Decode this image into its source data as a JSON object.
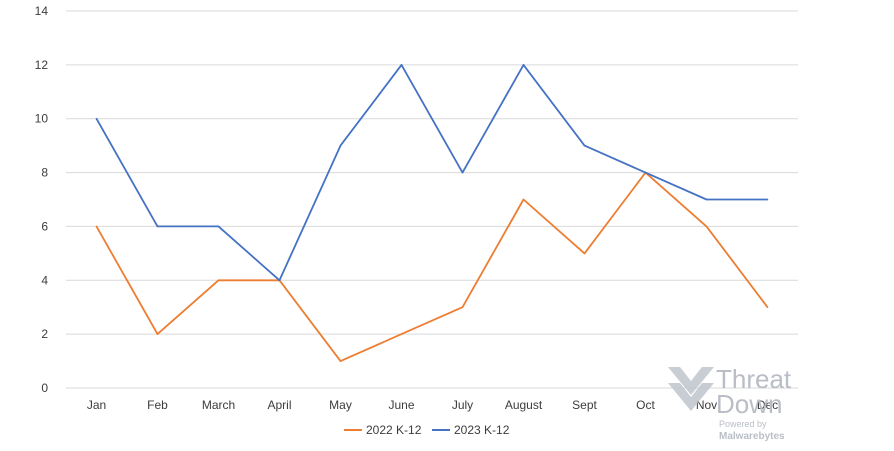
{
  "chart_data": {
    "type": "line",
    "categories": [
      "Jan",
      "Feb",
      "March",
      "April",
      "May",
      "June",
      "July",
      "August",
      "Sept",
      "Oct",
      "Nov",
      "Dec"
    ],
    "series": [
      {
        "name": "2022 K-12",
        "color": "#ed7d31",
        "values": [
          6,
          2,
          4,
          4,
          1,
          2,
          3,
          7,
          5,
          8,
          6,
          3
        ]
      },
      {
        "name": "2023 K-12",
        "color": "#4472c4",
        "values": [
          10,
          6,
          6,
          4,
          9,
          12,
          8,
          12,
          9,
          8,
          7,
          7
        ]
      }
    ],
    "ylim": [
      0,
      14
    ],
    "yticks": [
      0,
      2,
      4,
      6,
      8,
      10,
      12,
      14
    ],
    "grid": true,
    "legend": "bottom-center",
    "gridColor": "#d9d9d9"
  },
  "watermark": {
    "line1": "Threat",
    "line2": "Down",
    "powered_by": "Powered by",
    "brand": "Malwarebytes",
    "color": "#b9bec6",
    "icon": "chevron-down-icon"
  }
}
